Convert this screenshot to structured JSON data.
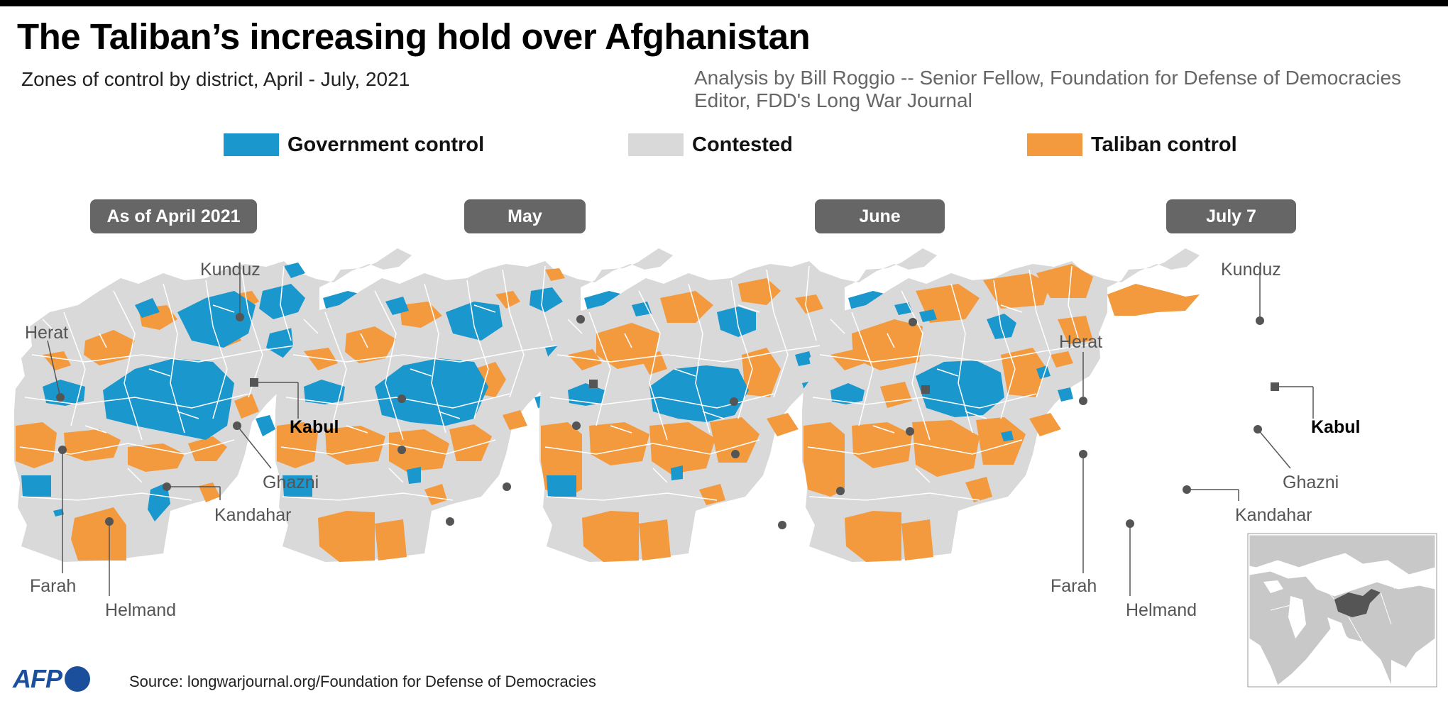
{
  "title": "The Taliban’s increasing hold over Afghanistan",
  "subtitle": "Zones of control by district, April - July, 2021",
  "analysis": {
    "line1": "Analysis by Bill Roggio -- Senior Fellow, Foundation for Defense of Democracies",
    "line2": "Editor, FDD's Long War Journal"
  },
  "legend": [
    {
      "label": "Government control",
      "color": "#1a97cc"
    },
    {
      "label": "Contested",
      "color": "#d9d9d9"
    },
    {
      "label": "Taliban control",
      "color": "#f39a3e"
    }
  ],
  "panels": [
    {
      "label": "As of April 2021"
    },
    {
      "label": "May"
    },
    {
      "label": "June"
    },
    {
      "label": "July 7"
    }
  ],
  "cities": {
    "kunduz": "Kunduz",
    "herat": "Herat",
    "kabul": "Kabul",
    "ghazni": "Ghazni",
    "kandahar": "Kandahar",
    "farah": "Farah",
    "helmand": "Helmand"
  },
  "logo": "AFP",
  "source": "Source: longwarjournal.org/Foundation for Defense of Democracies",
  "colors": {
    "government": "#1a97cc",
    "contested": "#d9d9d9",
    "taliban": "#f39a3e",
    "pill": "#666666",
    "marker": "#555555"
  }
}
